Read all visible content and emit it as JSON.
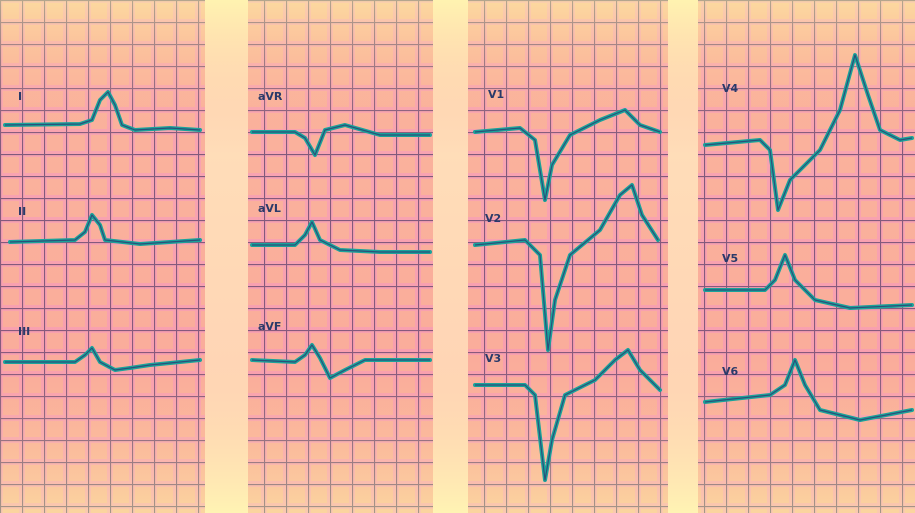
{
  "leads": [
    "I",
    "II",
    "III",
    "aVR",
    "aVL",
    "aVF",
    "V1",
    "V2",
    "V3",
    "V4",
    "V5",
    "V6"
  ]
}
